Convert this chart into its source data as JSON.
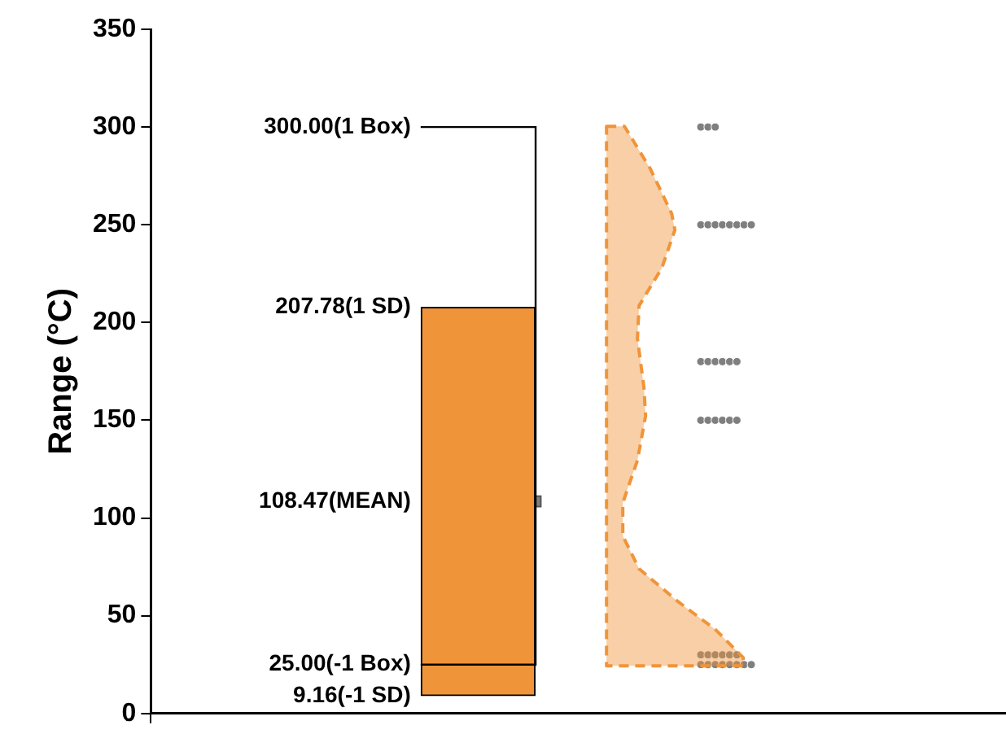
{
  "chart_data": {
    "type": "bar",
    "ylabel": "Range (°C)",
    "categories": [
      null
    ],
    "series": [
      {
        "color": "#f0943a",
        "base": [
          9.16
        ],
        "values": [
          198.62
        ]
      },
      {
        "type": "scatter",
        "color": "#808080",
        "marker": "square",
        "x": [
          null
        ],
        "values": [
          108.47
        ],
        "errors": [
          [
            25,
            300
          ]
        ]
      },
      {
        "type": "scatter",
        "color": "#7f7f7f",
        "marker": "circle",
        "x": [
          null,
          null,
          null,
          null,
          null,
          null,
          null,
          null,
          null,
          null,
          null,
          null,
          null,
          null,
          null,
          null,
          null,
          null,
          null,
          null,
          null,
          null,
          null,
          null,
          null,
          null,
          null,
          null,
          null,
          null,
          null,
          null,
          null,
          null,
          null,
          null,
          null
        ],
        "values": [
          300,
          300,
          300,
          250,
          250,
          250,
          250,
          250,
          250,
          250,
          250,
          180,
          180,
          180,
          180,
          180,
          180,
          150,
          150,
          150,
          150,
          150,
          150,
          30,
          30,
          30,
          30,
          30,
          30,
          25,
          25,
          25,
          25,
          25,
          25,
          25,
          25
        ]
      }
    ],
    "ylim": [
      0,
      350
    ],
    "yticks": [
      0,
      50,
      100,
      150,
      200,
      250,
      300,
      350
    ],
    "annotations": [
      "300.00(1 Box)",
      "207.78(1 SD)",
      "108.47(MEAN)",
      "25.00(-1 Box)",
      "9.16(-1 SD)"
    ],
    "grid": false,
    "legend": false
  }
}
